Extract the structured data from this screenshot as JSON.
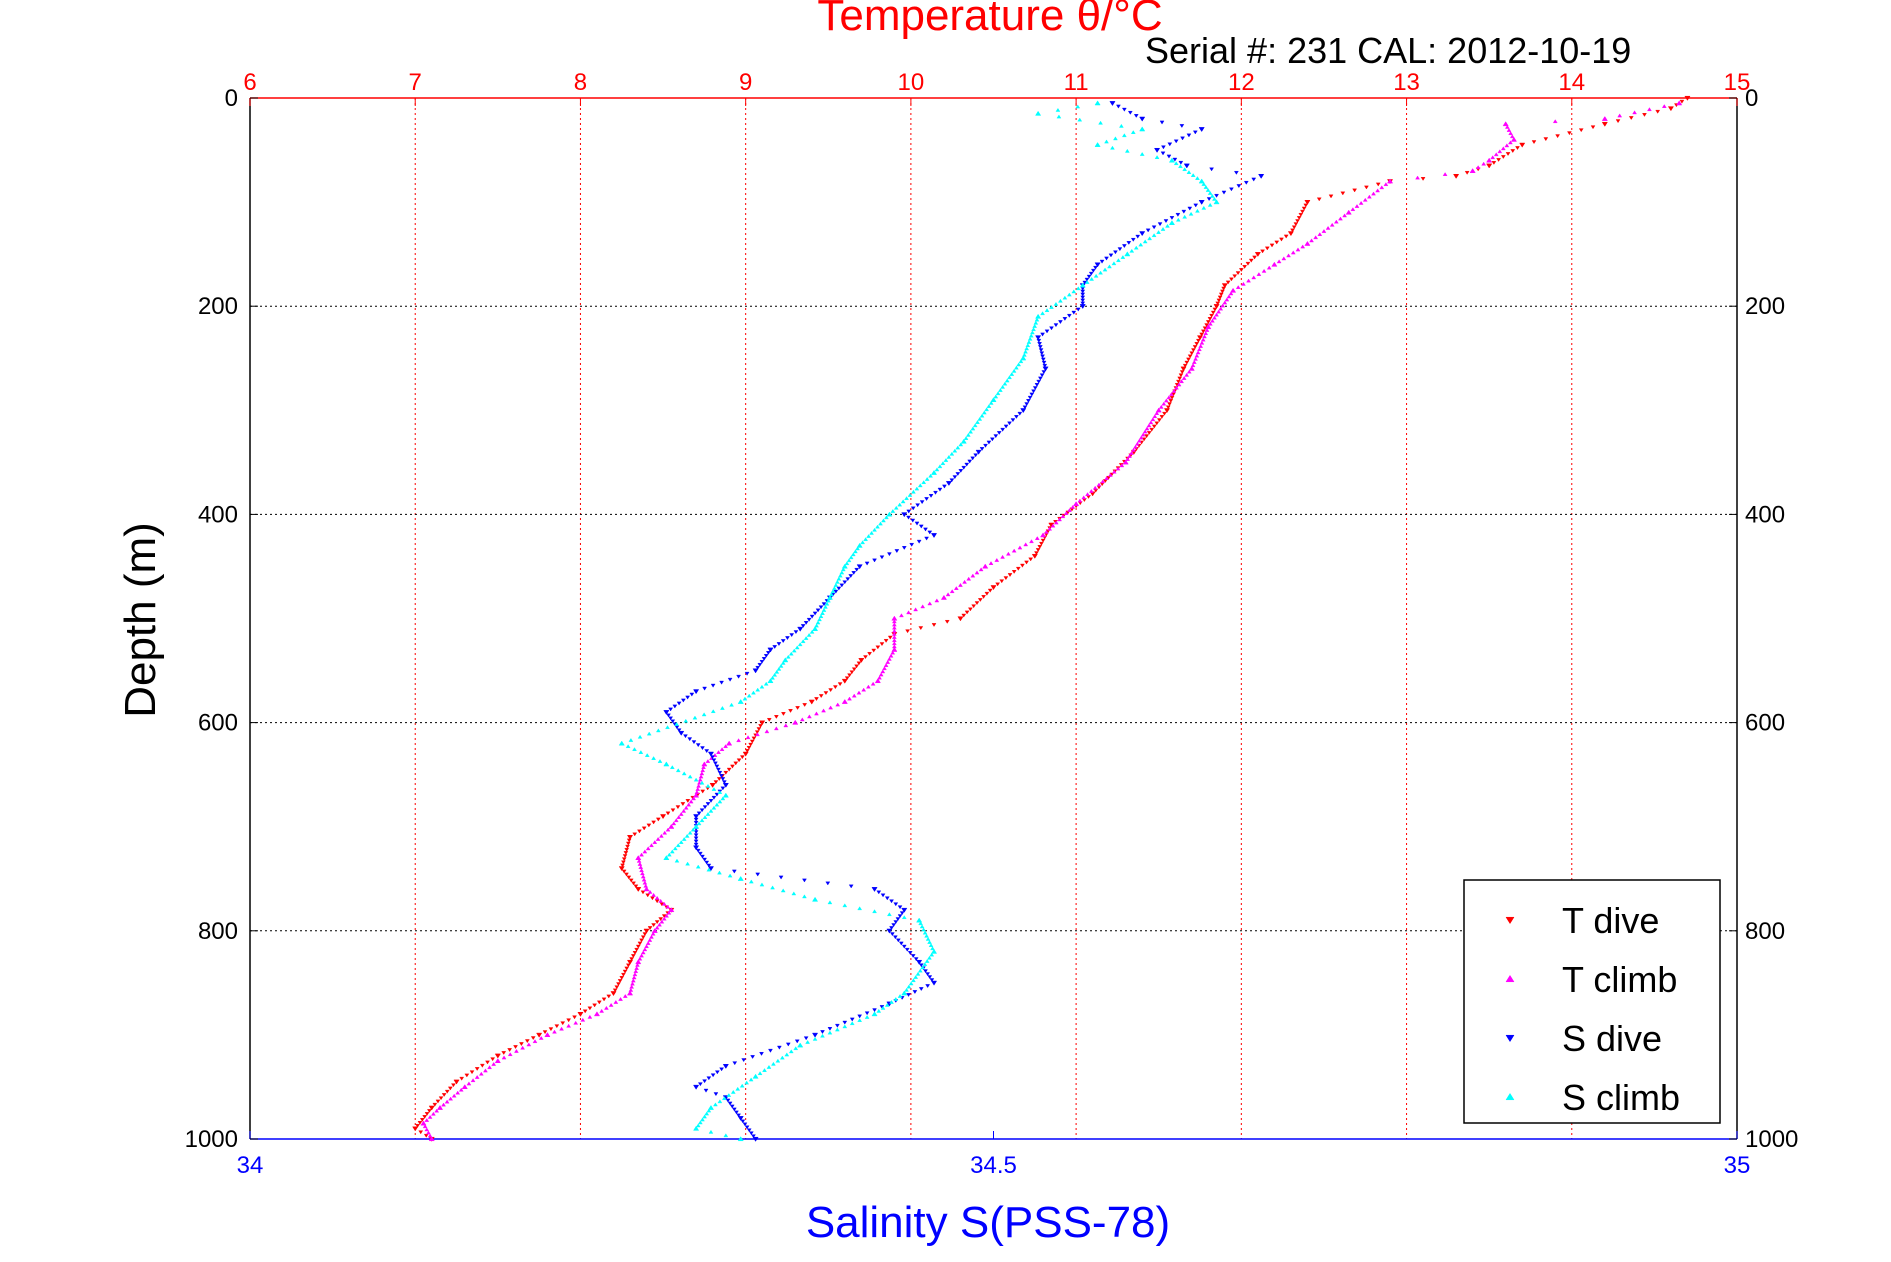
{
  "chart_data": {
    "type": "scatter",
    "title": "Temperature θ/°C",
    "subtitle": "Serial #: 231  CAL: 2012-10-19",
    "xlabel_top": "Temperature θ/°C",
    "xlabel_bottom": "Salinity S(PSS-78)",
    "ylabel": "Depth (m)",
    "x_top_range": [
      6,
      15
    ],
    "x_bottom_range": [
      34,
      35
    ],
    "y_range": [
      0,
      1000
    ],
    "y_reversed": true,
    "x_top_ticks": [
      "6",
      "7",
      "8",
      "9",
      "10",
      "11",
      "12",
      "13",
      "14",
      "15"
    ],
    "x_bottom_ticks": [
      "34",
      "34.5",
      "35"
    ],
    "y_ticks_left": [
      "0",
      "200",
      "400",
      "600",
      "800",
      "1000"
    ],
    "y_ticks_right": [
      "0",
      "200",
      "400",
      "600",
      "800",
      "1000"
    ],
    "grid": true,
    "legend_position": "bottom-right",
    "colors": {
      "temperature_axis": "#ff0000",
      "salinity_axis": "#0000ff",
      "t_dive": "#ff0000",
      "t_climb": "#ff00ff",
      "s_dive": "#0000ff",
      "s_climb": "#00ffff"
    },
    "series": [
      {
        "name": "T dive",
        "axis": "temperature",
        "marker": "triangle-down",
        "color": "#ff0000",
        "points": [
          [
            14.7,
            0
          ],
          [
            14.6,
            10
          ],
          [
            14.2,
            25
          ],
          [
            13.7,
            45
          ],
          [
            13.5,
            65
          ],
          [
            13.3,
            75
          ],
          [
            12.9,
            80
          ],
          [
            12.4,
            100
          ],
          [
            12.3,
            130
          ],
          [
            12.1,
            150
          ],
          [
            11.9,
            180
          ],
          [
            11.85,
            200
          ],
          [
            11.75,
            230
          ],
          [
            11.65,
            260
          ],
          [
            11.55,
            300
          ],
          [
            11.35,
            340
          ],
          [
            11.1,
            380
          ],
          [
            10.85,
            410
          ],
          [
            10.75,
            440
          ],
          [
            10.5,
            470
          ],
          [
            10.3,
            500
          ],
          [
            9.9,
            515
          ],
          [
            9.7,
            540
          ],
          [
            9.6,
            560
          ],
          [
            9.4,
            580
          ],
          [
            9.1,
            600
          ],
          [
            9.0,
            630
          ],
          [
            8.8,
            660
          ],
          [
            8.5,
            690
          ],
          [
            8.3,
            710
          ],
          [
            8.25,
            740
          ],
          [
            8.35,
            760
          ],
          [
            8.55,
            780
          ],
          [
            8.4,
            800
          ],
          [
            8.3,
            830
          ],
          [
            8.2,
            860
          ],
          [
            8.0,
            880
          ],
          [
            7.75,
            900
          ],
          [
            7.5,
            920
          ],
          [
            7.25,
            945
          ],
          [
            7.1,
            970
          ],
          [
            7.0,
            990
          ],
          [
            7.1,
            1000
          ]
        ]
      },
      {
        "name": "T climb",
        "axis": "temperature",
        "marker": "triangle-up",
        "color": "#ff00ff",
        "points": [
          [
            14.65,
            5
          ],
          [
            14.2,
            20
          ],
          [
            13.6,
            25
          ],
          [
            13.65,
            40
          ],
          [
            13.5,
            60
          ],
          [
            13.4,
            70
          ],
          [
            12.9,
            80
          ],
          [
            12.65,
            110
          ],
          [
            12.4,
            140
          ],
          [
            12.2,
            160
          ],
          [
            11.95,
            185
          ],
          [
            11.8,
            220
          ],
          [
            11.7,
            260
          ],
          [
            11.5,
            300
          ],
          [
            11.3,
            350
          ],
          [
            11.0,
            390
          ],
          [
            10.8,
            420
          ],
          [
            10.45,
            450
          ],
          [
            10.2,
            480
          ],
          [
            9.9,
            500
          ],
          [
            9.9,
            530
          ],
          [
            9.8,
            560
          ],
          [
            9.6,
            580
          ],
          [
            9.3,
            600
          ],
          [
            8.9,
            620
          ],
          [
            8.75,
            640
          ],
          [
            8.7,
            670
          ],
          [
            8.55,
            700
          ],
          [
            8.35,
            730
          ],
          [
            8.4,
            760
          ],
          [
            8.55,
            780
          ],
          [
            8.45,
            800
          ],
          [
            8.35,
            830
          ],
          [
            8.3,
            860
          ],
          [
            8.1,
            880
          ],
          [
            7.8,
            900
          ],
          [
            7.5,
            925
          ],
          [
            7.3,
            950
          ],
          [
            7.15,
            970
          ],
          [
            7.05,
            985
          ],
          [
            7.1,
            1000
          ]
        ]
      },
      {
        "name": "S dive",
        "axis": "salinity",
        "marker": "triangle-down",
        "color": "#0000ff",
        "points": [
          [
            34.58,
            5
          ],
          [
            34.6,
            20
          ],
          [
            34.64,
            30
          ],
          [
            34.61,
            50
          ],
          [
            34.63,
            65
          ],
          [
            34.68,
            75
          ],
          [
            34.64,
            100
          ],
          [
            34.6,
            130
          ],
          [
            34.57,
            160
          ],
          [
            34.56,
            180
          ],
          [
            34.56,
            200
          ],
          [
            34.53,
            230
          ],
          [
            34.535,
            260
          ],
          [
            34.52,
            300
          ],
          [
            34.49,
            340
          ],
          [
            34.47,
            370
          ],
          [
            34.44,
            400
          ],
          [
            34.46,
            420
          ],
          [
            34.41,
            450
          ],
          [
            34.39,
            480
          ],
          [
            34.37,
            510
          ],
          [
            34.35,
            530
          ],
          [
            34.34,
            550
          ],
          [
            34.3,
            570
          ],
          [
            34.28,
            590
          ],
          [
            34.29,
            610
          ],
          [
            34.31,
            630
          ],
          [
            34.32,
            660
          ],
          [
            34.3,
            690
          ],
          [
            34.3,
            720
          ],
          [
            34.31,
            740
          ],
          [
            34.42,
            760
          ],
          [
            34.44,
            780
          ],
          [
            34.43,
            800
          ],
          [
            34.45,
            830
          ],
          [
            34.46,
            850
          ],
          [
            34.43,
            870
          ],
          [
            34.38,
            900
          ],
          [
            34.32,
            930
          ],
          [
            34.3,
            950
          ],
          [
            34.32,
            960
          ],
          [
            34.33,
            980
          ],
          [
            34.34,
            1000
          ]
        ]
      },
      {
        "name": "S climb",
        "axis": "salinity",
        "marker": "triangle-up",
        "color": "#00ffff",
        "points": [
          [
            34.57,
            5
          ],
          [
            34.53,
            15
          ],
          [
            34.6,
            30
          ],
          [
            34.57,
            45
          ],
          [
            34.62,
            60
          ],
          [
            34.64,
            80
          ],
          [
            34.65,
            100
          ],
          [
            34.62,
            120
          ],
          [
            34.59,
            150
          ],
          [
            34.56,
            180
          ],
          [
            34.53,
            210
          ],
          [
            34.52,
            250
          ],
          [
            34.5,
            290
          ],
          [
            34.48,
            330
          ],
          [
            34.46,
            360
          ],
          [
            34.43,
            400
          ],
          [
            34.41,
            430
          ],
          [
            34.4,
            450
          ],
          [
            34.39,
            480
          ],
          [
            34.38,
            510
          ],
          [
            34.36,
            540
          ],
          [
            34.35,
            560
          ],
          [
            34.33,
            580
          ],
          [
            34.25,
            620
          ],
          [
            34.28,
            640
          ],
          [
            34.32,
            670
          ],
          [
            34.3,
            700
          ],
          [
            34.28,
            730
          ],
          [
            34.33,
            750
          ],
          [
            34.38,
            770
          ],
          [
            34.45,
            790
          ],
          [
            34.46,
            820
          ],
          [
            34.44,
            860
          ],
          [
            34.42,
            880
          ],
          [
            34.37,
            910
          ],
          [
            34.34,
            940
          ],
          [
            34.31,
            970
          ],
          [
            34.3,
            990
          ],
          [
            34.33,
            1000
          ]
        ]
      }
    ]
  }
}
